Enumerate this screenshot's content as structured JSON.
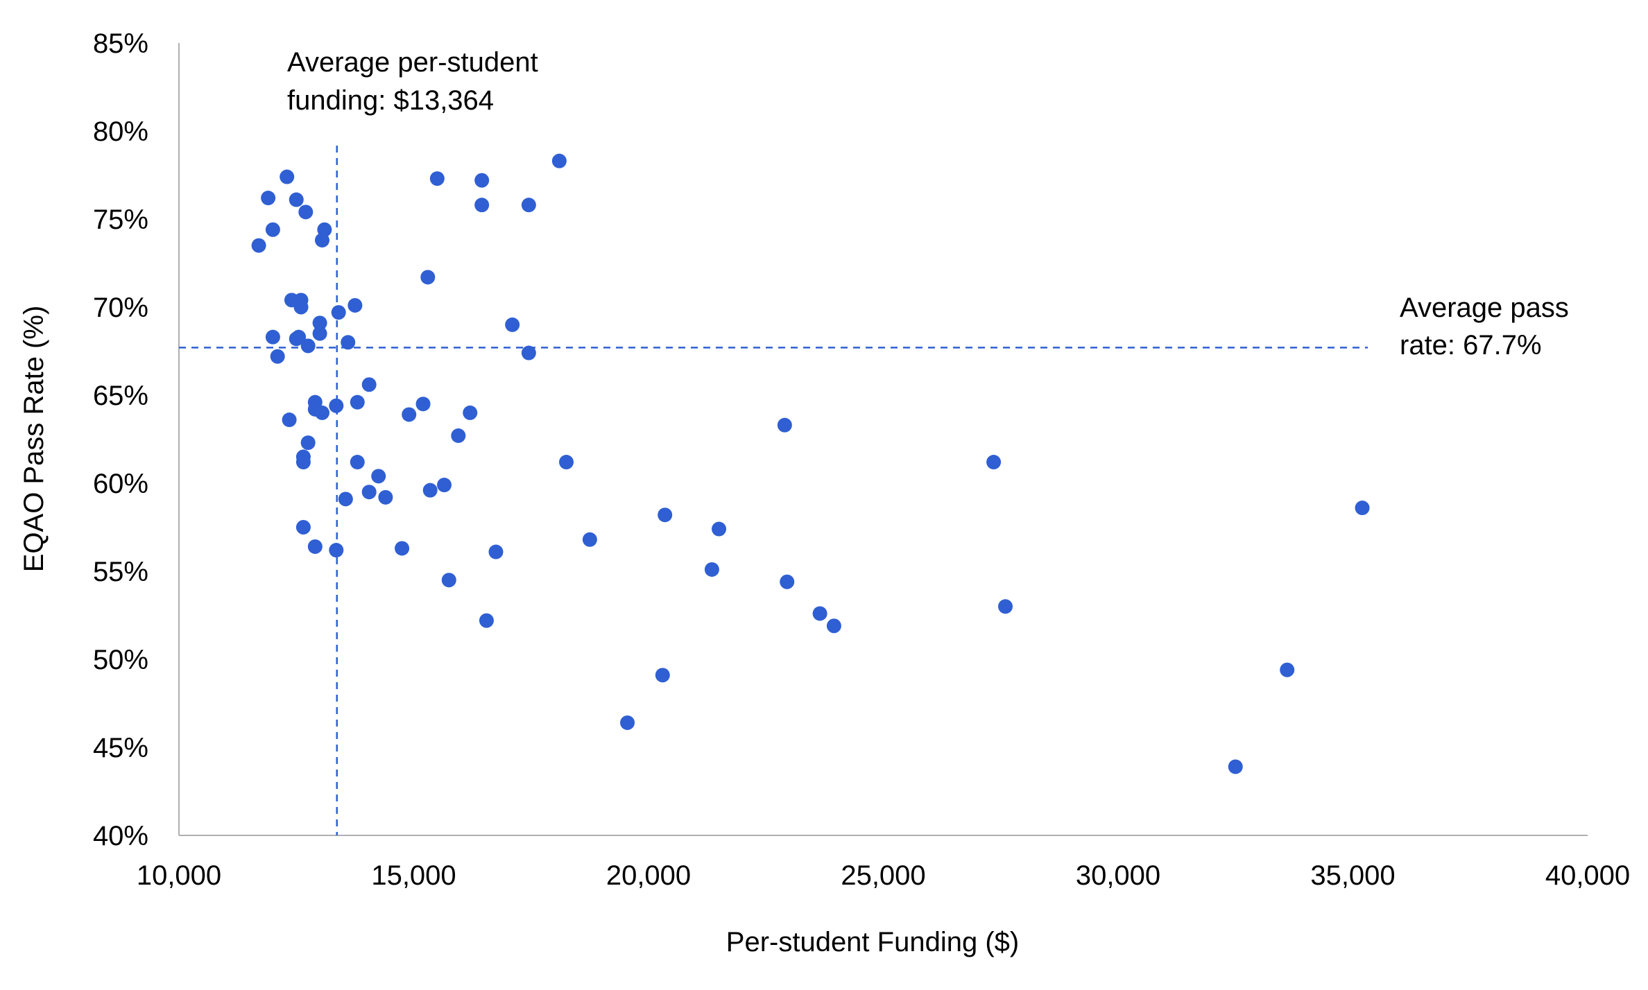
{
  "chart_data": {
    "type": "scatter",
    "xlabel": "Per-student Funding ($)",
    "ylabel": "EQAO Pass Rate (%)",
    "xlim": [
      10000,
      40000
    ],
    "ylim": [
      40,
      85
    ],
    "x_ticks": [
      10000,
      15000,
      20000,
      25000,
      30000,
      35000,
      40000
    ],
    "x_tick_labels": [
      "10,000",
      "15,000",
      "20,000",
      "25,000",
      "30,000",
      "35,000",
      "40,000"
    ],
    "y_ticks": [
      40,
      45,
      50,
      55,
      60,
      65,
      70,
      75,
      80,
      85
    ],
    "y_tick_labels": [
      "40%",
      "45%",
      "50%",
      "55%",
      "60%",
      "65%",
      "70%",
      "75%",
      "80%",
      "85%"
    ],
    "grid": false,
    "point_color": "#2f5fd3",
    "reference_color": "#2f5fd3",
    "reference_lines": {
      "vertical": {
        "x": 13364,
        "label_lines": [
          "Average per-student",
          "funding: $13,364"
        ]
      },
      "horizontal": {
        "y": 67.7,
        "label_lines": [
          "Average pass",
          "rate: 67.7%"
        ]
      }
    },
    "points": [
      [
        12300,
        77.4
      ],
      [
        11900,
        76.2
      ],
      [
        12500,
        76.1
      ],
      [
        12700,
        75.4
      ],
      [
        12000,
        74.4
      ],
      [
        13100,
        74.4
      ],
      [
        13050,
        73.8
      ],
      [
        11700,
        73.5
      ],
      [
        12400,
        70.4
      ],
      [
        12600,
        70.4
      ],
      [
        12600,
        70.0
      ],
      [
        13750,
        70.1
      ],
      [
        13400,
        69.7
      ],
      [
        13000,
        69.1
      ],
      [
        13000,
        68.5
      ],
      [
        12000,
        68.3
      ],
      [
        12500,
        68.2
      ],
      [
        12550,
        68.3
      ],
      [
        13600,
        68.0
      ],
      [
        12750,
        67.8
      ],
      [
        12100,
        67.2
      ],
      [
        14050,
        65.6
      ],
      [
        13800,
        64.6
      ],
      [
        12900,
        64.6
      ],
      [
        12900,
        64.2
      ],
      [
        13350,
        64.4
      ],
      [
        13050,
        64.0
      ],
      [
        12350,
        63.6
      ],
      [
        12750,
        62.3
      ],
      [
        12650,
        61.5
      ],
      [
        12650,
        61.2
      ],
      [
        13800,
        61.2
      ],
      [
        14250,
        60.4
      ],
      [
        14050,
        59.5
      ],
      [
        14400,
        59.2
      ],
      [
        13550,
        59.1
      ],
      [
        12650,
        57.5
      ],
      [
        12900,
        56.4
      ],
      [
        13350,
        56.2
      ],
      [
        15200,
        64.5
      ],
      [
        14900,
        63.9
      ],
      [
        15950,
        62.7
      ],
      [
        16200,
        64.0
      ],
      [
        15300,
        71.7
      ],
      [
        15500,
        77.3
      ],
      [
        16450,
        77.2
      ],
      [
        16450,
        75.8
      ],
      [
        17450,
        75.8
      ],
      [
        18100,
        78.3
      ],
      [
        17100,
        69.0
      ],
      [
        17450,
        67.4
      ],
      [
        15650,
        59.9
      ],
      [
        15350,
        59.6
      ],
      [
        14750,
        56.3
      ],
      [
        15750,
        54.5
      ],
      [
        16750,
        56.1
      ],
      [
        16550,
        52.2
      ],
      [
        18250,
        61.2
      ],
      [
        18750,
        56.8
      ],
      [
        20350,
        58.2
      ],
      [
        21500,
        57.4
      ],
      [
        21350,
        55.1
      ],
      [
        19550,
        46.4
      ],
      [
        20300,
        49.1
      ],
      [
        22900,
        63.3
      ],
      [
        22950,
        54.4
      ],
      [
        23650,
        52.6
      ],
      [
        23950,
        51.9
      ],
      [
        27350,
        61.2
      ],
      [
        27600,
        53.0
      ],
      [
        32500,
        43.9
      ],
      [
        33600,
        49.4
      ],
      [
        35200,
        58.6
      ]
    ]
  }
}
